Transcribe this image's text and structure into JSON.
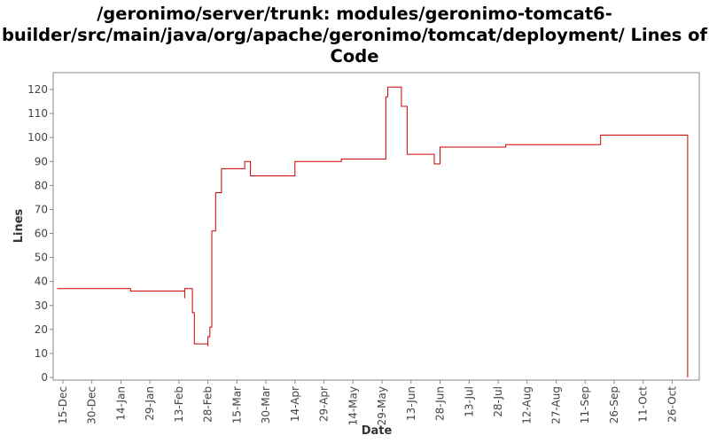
{
  "chart_data": {
    "type": "line",
    "title": "/geronimo/server/trunk: modules/geronimo-tomcat6-\nbuilder/src/main/java/org/apache/geronimo/tomcat/deployment/ Lines of\nCode",
    "xlabel": "Date",
    "ylabel": "Lines",
    "ylim": [
      0,
      125
    ],
    "yticks": [
      0,
      10,
      20,
      30,
      40,
      50,
      60,
      70,
      80,
      90,
      100,
      110,
      120
    ],
    "xlim": [
      "2006-12-10",
      "2007-11-09"
    ],
    "xticks": [
      {
        "date": "2006-12-15",
        "label": "15-Dec"
      },
      {
        "date": "2006-12-30",
        "label": "30-Dec"
      },
      {
        "date": "2007-01-14",
        "label": "14-Jan"
      },
      {
        "date": "2007-01-29",
        "label": "29-Jan"
      },
      {
        "date": "2007-02-13",
        "label": "13-Feb"
      },
      {
        "date": "2007-02-28",
        "label": "28-Feb"
      },
      {
        "date": "2007-03-15",
        "label": "15-Mar"
      },
      {
        "date": "2007-03-30",
        "label": "30-Mar"
      },
      {
        "date": "2007-04-14",
        "label": "14-Apr"
      },
      {
        "date": "2007-04-29",
        "label": "29-Apr"
      },
      {
        "date": "2007-05-14",
        "label": "14-May"
      },
      {
        "date": "2007-05-29",
        "label": "29-May"
      },
      {
        "date": "2007-06-13",
        "label": "13-Jun"
      },
      {
        "date": "2007-06-28",
        "label": "28-Jun"
      },
      {
        "date": "2007-07-13",
        "label": "13-Jul"
      },
      {
        "date": "2007-07-28",
        "label": "28-Jul"
      },
      {
        "date": "2007-08-12",
        "label": "12-Aug"
      },
      {
        "date": "2007-08-27",
        "label": "27-Aug"
      },
      {
        "date": "2007-09-11",
        "label": "11-Sep"
      },
      {
        "date": "2007-09-26",
        "label": "26-Sep"
      },
      {
        "date": "2007-10-11",
        "label": "11-Oct"
      },
      {
        "date": "2007-10-26",
        "label": "26-Oct"
      }
    ],
    "grid": false,
    "line_color": "#cc0000",
    "series": [
      {
        "step": true,
        "points": [
          {
            "x": "2006-12-12",
            "y": 37
          },
          {
            "x": "2007-01-19",
            "y": 36
          },
          {
            "x": "2007-02-16",
            "y": 33
          },
          {
            "x": "2007-02-16",
            "y": 37
          },
          {
            "x": "2007-02-20",
            "y": 27
          },
          {
            "x": "2007-02-21",
            "y": 14
          },
          {
            "x": "2007-02-28",
            "y": 13
          },
          {
            "x": "2007-02-28",
            "y": 17
          },
          {
            "x": "2007-03-01",
            "y": 21
          },
          {
            "x": "2007-03-02",
            "y": 61
          },
          {
            "x": "2007-03-04",
            "y": 77
          },
          {
            "x": "2007-03-07",
            "y": 87
          },
          {
            "x": "2007-03-19",
            "y": 90
          },
          {
            "x": "2007-03-22",
            "y": 84
          },
          {
            "x": "2007-04-14",
            "y": 90
          },
          {
            "x": "2007-05-08",
            "y": 91
          },
          {
            "x": "2007-05-31",
            "y": 117
          },
          {
            "x": "2007-06-01",
            "y": 121
          },
          {
            "x": "2007-06-08",
            "y": 113
          },
          {
            "x": "2007-06-11",
            "y": 93
          },
          {
            "x": "2007-06-25",
            "y": 89
          },
          {
            "x": "2007-06-28",
            "y": 96
          },
          {
            "x": "2007-08-01",
            "y": 97
          },
          {
            "x": "2007-09-19",
            "y": 101
          },
          {
            "x": "2007-11-03",
            "y": 0
          }
        ]
      }
    ]
  }
}
